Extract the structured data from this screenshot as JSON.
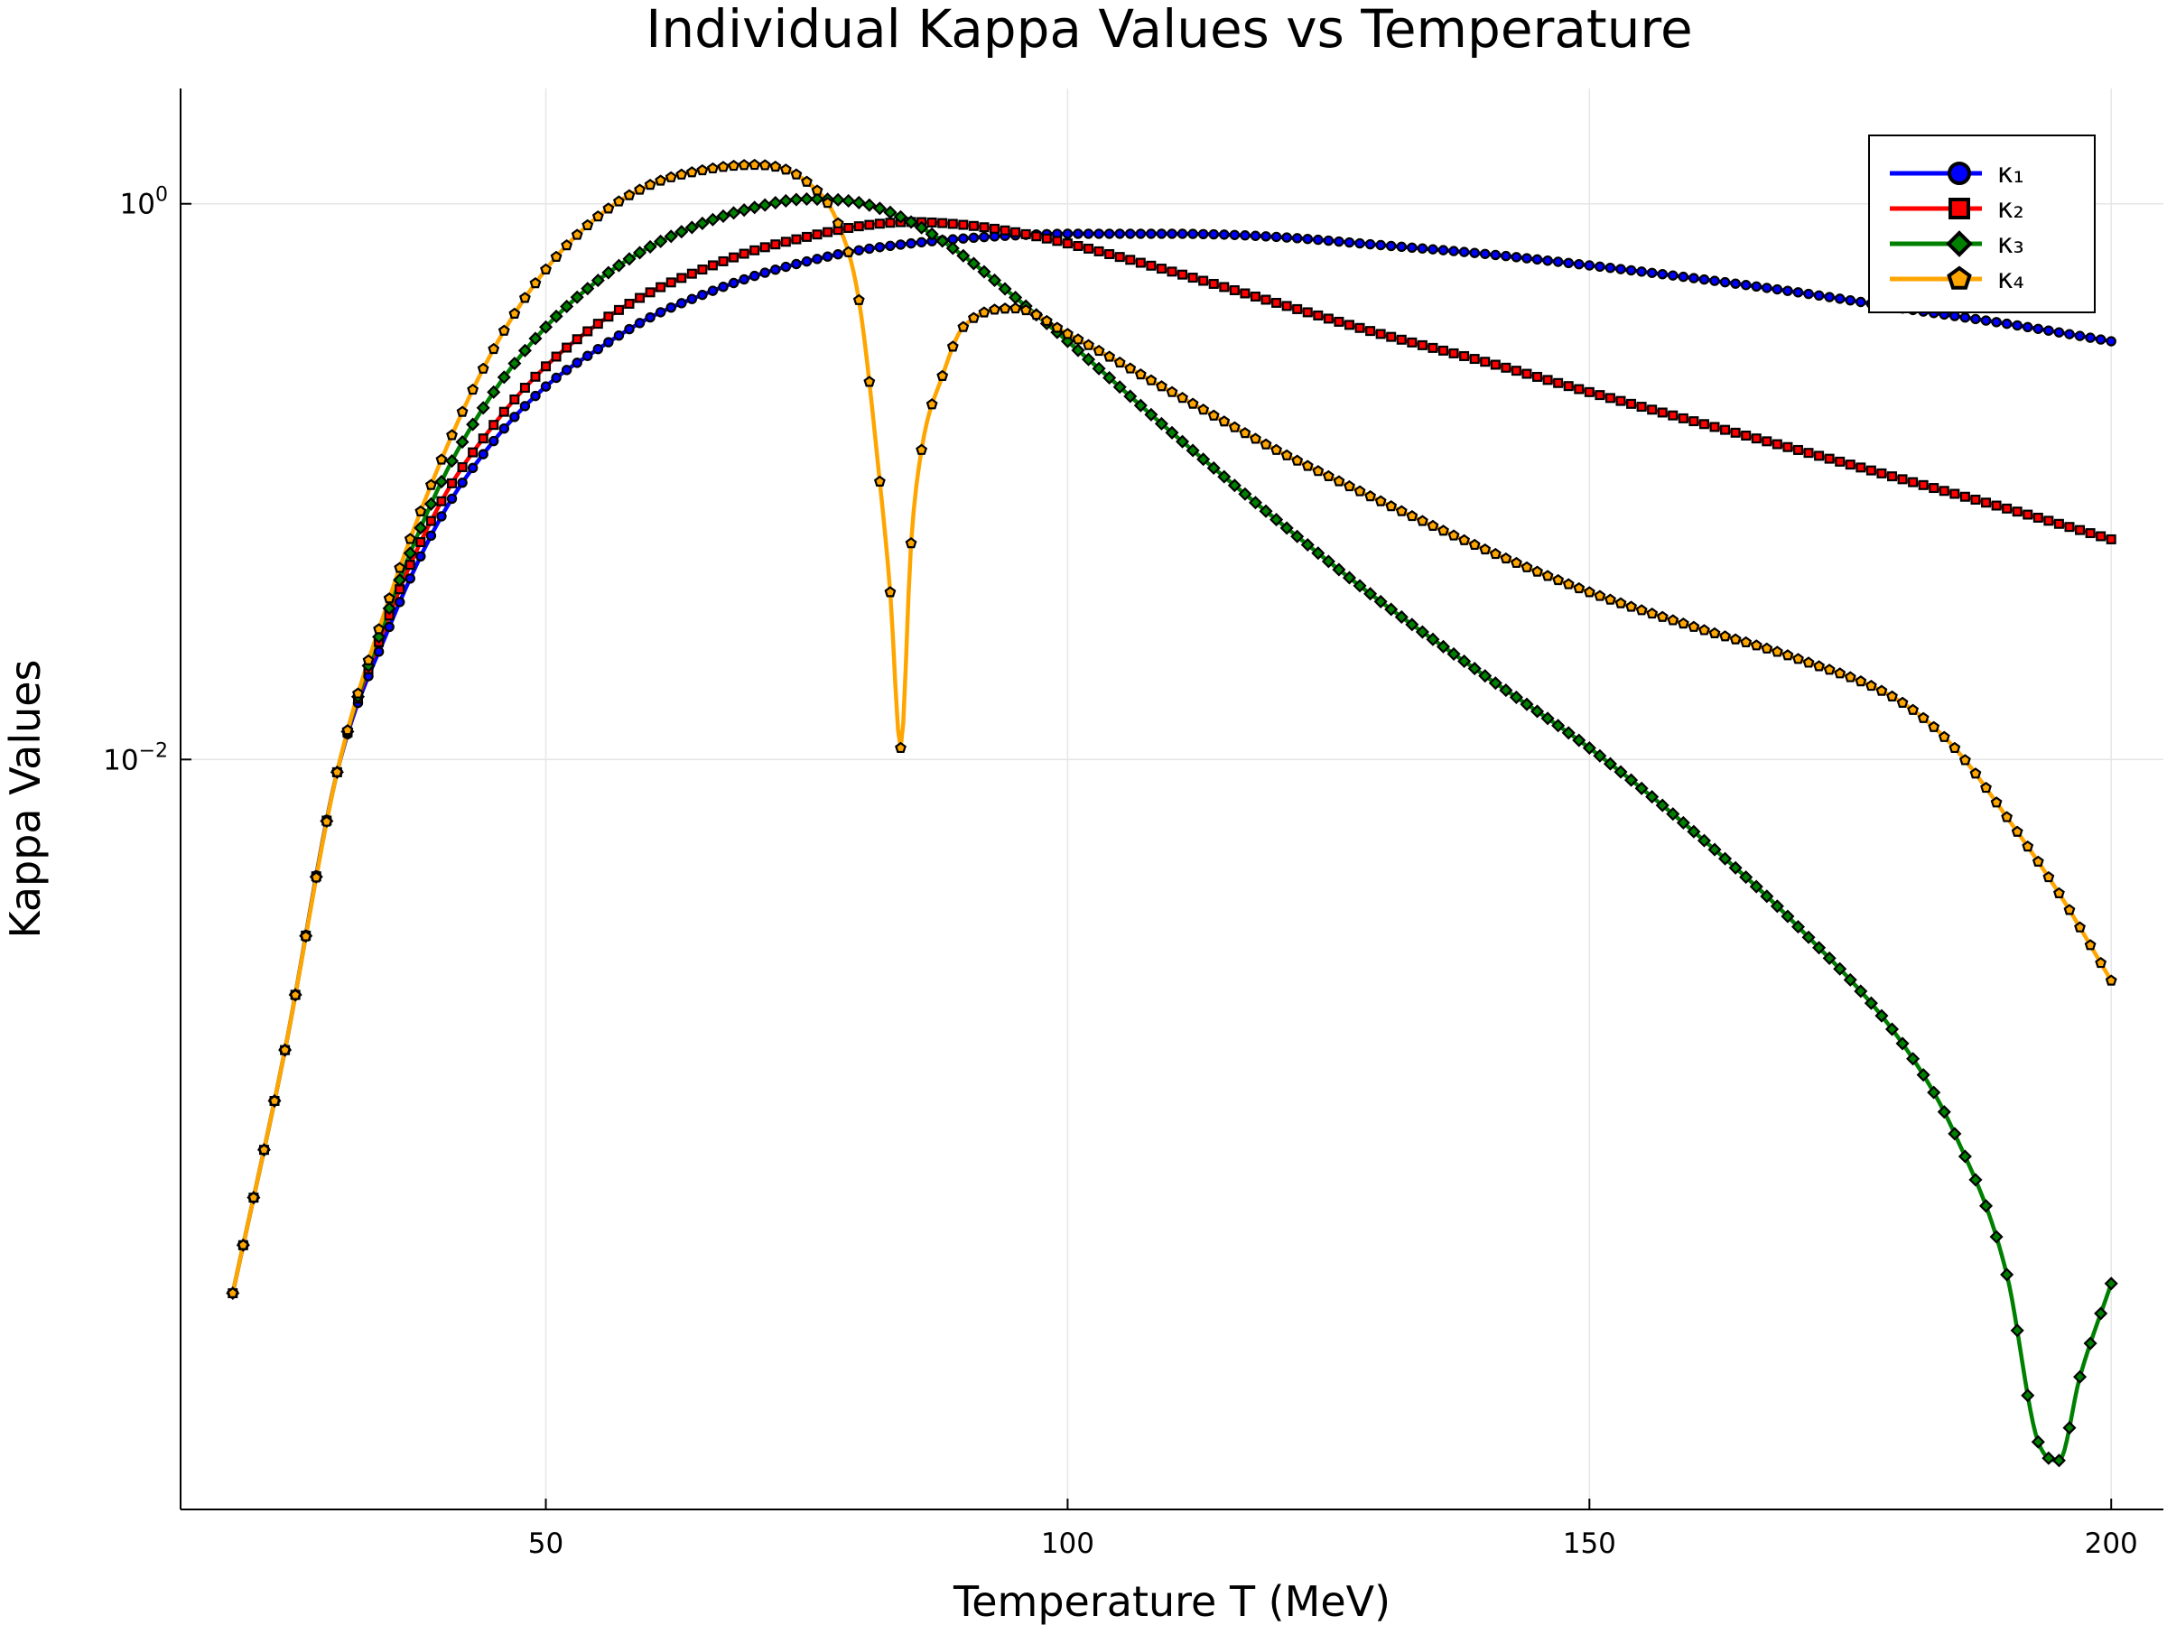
{
  "chart_data": {
    "type": "line",
    "title": "Individual Kappa Values vs Temperature",
    "xlabel": "Temperature T (MeV)",
    "ylabel": "Kappa Values",
    "x_ticks": [
      50,
      100,
      150,
      200
    ],
    "x_tick_labels": [
      "50",
      "100",
      "150",
      "200"
    ],
    "y_ticks": [
      -2,
      0
    ],
    "y_tick_labels": [
      {
        "base": "10",
        "exp": "−2"
      },
      {
        "base": "10",
        "exp": "0"
      }
    ],
    "y_scale": "log10",
    "xlim": [
      15,
      205
    ],
    "ylim": [
      2e-05,
      2.6
    ],
    "grid": true,
    "legend_position": "top-right",
    "series": [
      {
        "name": "κ₁",
        "color": "#0000ff",
        "marker": "circle",
        "points": [
          [
            20,
            0.00012
          ],
          [
            25,
            0.0009
          ],
          [
            30,
            0.009
          ],
          [
            35,
            0.03
          ],
          [
            40,
            0.075
          ],
          [
            45,
            0.14
          ],
          [
            50,
            0.22
          ],
          [
            55,
            0.3
          ],
          [
            60,
            0.39
          ],
          [
            65,
            0.47
          ],
          [
            70,
            0.55
          ],
          [
            75,
            0.62
          ],
          [
            80,
            0.68
          ],
          [
            85,
            0.72
          ],
          [
            90,
            0.75
          ],
          [
            95,
            0.77
          ],
          [
            100,
            0.78
          ],
          [
            110,
            0.78
          ],
          [
            120,
            0.76
          ],
          [
            130,
            0.71
          ],
          [
            140,
            0.66
          ],
          [
            150,
            0.6
          ],
          [
            160,
            0.54
          ],
          [
            170,
            0.48
          ],
          [
            180,
            0.42
          ],
          [
            190,
            0.37
          ],
          [
            200,
            0.32
          ]
        ]
      },
      {
        "name": "κ₂",
        "color": "#ff0000",
        "marker": "square",
        "points": [
          [
            20,
            0.00012
          ],
          [
            25,
            0.0009
          ],
          [
            30,
            0.009
          ],
          [
            35,
            0.033
          ],
          [
            40,
            0.085
          ],
          [
            45,
            0.16
          ],
          [
            50,
            0.26
          ],
          [
            55,
            0.37
          ],
          [
            60,
            0.48
          ],
          [
            65,
            0.58
          ],
          [
            70,
            0.68
          ],
          [
            75,
            0.76
          ],
          [
            80,
            0.83
          ],
          [
            85,
            0.86
          ],
          [
            90,
            0.84
          ],
          [
            95,
            0.79
          ],
          [
            100,
            0.72
          ],
          [
            110,
            0.57
          ],
          [
            120,
            0.44
          ],
          [
            130,
            0.34
          ],
          [
            140,
            0.27
          ],
          [
            150,
            0.21
          ],
          [
            160,
            0.165
          ],
          [
            170,
            0.13
          ],
          [
            180,
            0.102
          ],
          [
            190,
            0.08
          ],
          [
            200,
            0.062
          ]
        ]
      },
      {
        "name": "κ₃",
        "color": "#008000",
        "marker": "diamond",
        "points": [
          [
            20,
            0.00012
          ],
          [
            25,
            0.0009
          ],
          [
            30,
            0.009
          ],
          [
            35,
            0.035
          ],
          [
            40,
            0.1
          ],
          [
            45,
            0.21
          ],
          [
            50,
            0.36
          ],
          [
            55,
            0.53
          ],
          [
            60,
            0.7
          ],
          [
            65,
            0.85
          ],
          [
            70,
            0.97
          ],
          [
            75,
            1.04
          ],
          [
            80,
            1.01
          ],
          [
            85,
            0.86
          ],
          [
            90,
            0.65
          ],
          [
            95,
            0.46
          ],
          [
            100,
            0.32
          ],
          [
            110,
            0.15
          ],
          [
            120,
            0.073
          ],
          [
            130,
            0.037
          ],
          [
            140,
            0.02
          ],
          [
            150,
            0.011
          ],
          [
            160,
            0.0055
          ],
          [
            170,
            0.0025
          ],
          [
            180,
            0.00095
          ],
          [
            185,
            0.00045
          ],
          [
            190,
            0.00014
          ],
          [
            193,
            3.5e-05
          ],
          [
            195,
            3e-05
          ],
          [
            197,
            6e-05
          ],
          [
            200,
            0.00013
          ]
        ]
      },
      {
        "name": "κ₄",
        "color": "#ffa500",
        "marker": "pentagon",
        "points": [
          [
            20,
            0.00012
          ],
          [
            25,
            0.0009
          ],
          [
            30,
            0.009
          ],
          [
            35,
            0.038
          ],
          [
            40,
            0.12
          ],
          [
            45,
            0.3
          ],
          [
            50,
            0.58
          ],
          [
            55,
            0.9
          ],
          [
            60,
            1.17
          ],
          [
            65,
            1.32
          ],
          [
            70,
            1.38
          ],
          [
            75,
            1.2
          ],
          [
            78,
            0.85
          ],
          [
            80,
            0.45
          ],
          [
            82,
            0.1
          ],
          [
            83,
            0.04
          ],
          [
            84,
            0.011
          ],
          [
            85,
            0.06
          ],
          [
            86,
            0.13
          ],
          [
            88,
            0.24
          ],
          [
            90,
            0.36
          ],
          [
            95,
            0.42
          ],
          [
            100,
            0.34
          ],
          [
            110,
            0.21
          ],
          [
            120,
            0.13
          ],
          [
            130,
            0.085
          ],
          [
            140,
            0.057
          ],
          [
            150,
            0.04
          ],
          [
            160,
            0.03
          ],
          [
            170,
            0.023
          ],
          [
            180,
            0.016
          ],
          [
            185,
            0.011
          ],
          [
            190,
            0.0062
          ],
          [
            195,
            0.0033
          ],
          [
            200,
            0.0016
          ]
        ]
      }
    ]
  }
}
